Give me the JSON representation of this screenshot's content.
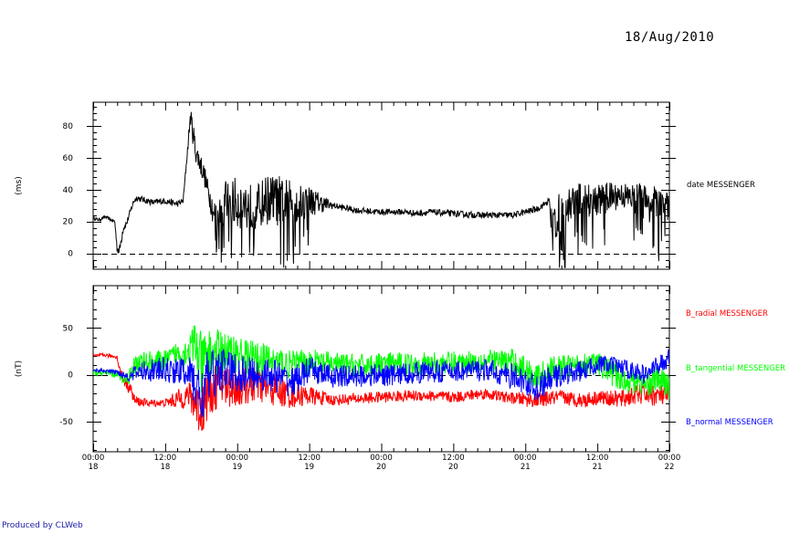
{
  "header": {
    "date": "18/Aug/2010"
  },
  "footer": {
    "credit": "Produced by CLWeb"
  },
  "chart_data": [
    {
      "type": "line",
      "ylabel": "(ms)",
      "ylim": [
        -10,
        95
      ],
      "yticks": [
        0,
        20,
        40,
        60,
        80
      ],
      "reference_line": 0,
      "x_range_hours": [
        0,
        96
      ],
      "series": [
        {
          "name": "date MESSENGER",
          "color": "#000000",
          "x": [
            0,
            1,
            2,
            3,
            3.6,
            4,
            4.4,
            5,
            5.6,
            6,
            6.8,
            7.3,
            8,
            10,
            12,
            14,
            15,
            16.2,
            16.5,
            17,
            17.3,
            18,
            18.6,
            19,
            19.5,
            20,
            20.7,
            21.5,
            22,
            24,
            25.5,
            27,
            29,
            31,
            32,
            34,
            36,
            40,
            44,
            48,
            52,
            54,
            56,
            60,
            64,
            70,
            74,
            76,
            76.5,
            77,
            78,
            80,
            84,
            86,
            88,
            90,
            92,
            94,
            95.5
          ],
          "y": [
            22,
            21,
            23,
            21,
            20,
            3,
            2,
            16,
            19,
            24,
            33,
            35,
            34,
            32,
            33,
            31,
            33,
            86,
            80,
            66,
            62,
            55,
            48,
            41,
            35,
            27,
            21,
            25,
            33,
            32,
            30,
            28,
            34,
            33,
            32,
            31,
            33,
            30,
            27,
            26,
            26,
            25,
            26,
            25,
            24,
            24,
            28,
            33,
            13,
            22,
            24,
            33,
            34,
            35,
            37,
            34,
            32,
            30,
            31
          ],
          "noise": [
            1,
            1,
            1,
            1,
            1,
            3,
            3,
            3,
            2,
            2,
            2,
            2,
            2,
            2,
            2,
            2,
            2,
            4,
            8,
            8,
            7,
            7,
            7,
            7,
            8,
            10,
            10,
            12,
            14,
            16,
            16,
            14,
            16,
            16,
            16,
            12,
            10,
            2,
            2,
            2,
            2,
            2,
            2,
            2,
            2,
            2,
            2,
            2,
            14,
            14,
            14,
            12,
            10,
            10,
            8,
            10,
            12,
            12,
            10
          ]
        }
      ]
    },
    {
      "type": "line",
      "ylabel": "(nT)",
      "ylim": [
        -82,
        95
      ],
      "yticks": [
        -50,
        0,
        50
      ],
      "reference_line": 0,
      "x_range_hours": [
        0,
        96
      ],
      "xticks": [
        {
          "h": 0,
          "time": "00:00",
          "day": "18"
        },
        {
          "h": 12,
          "time": "12:00",
          "day": "18"
        },
        {
          "h": 24,
          "time": "00:00",
          "day": "19"
        },
        {
          "h": 36,
          "time": "12:00",
          "day": "19"
        },
        {
          "h": 48,
          "time": "00:00",
          "day": "20"
        },
        {
          "h": 60,
          "time": "12:00",
          "day": "20"
        },
        {
          "h": 72,
          "time": "00:00",
          "day": "21"
        },
        {
          "h": 84,
          "time": "12:00",
          "day": "21"
        },
        {
          "h": 96,
          "time": "00:00",
          "day": "22"
        }
      ],
      "series": [
        {
          "name": "B_radial MESSENGER",
          "color": "#ff0000",
          "x": [
            0,
            2,
            4,
            4.3,
            5,
            6,
            7,
            9,
            12,
            14,
            16,
            17,
            18,
            19,
            21,
            24,
            27,
            30,
            33,
            36,
            40,
            45,
            50,
            55,
            60,
            65,
            70,
            72,
            74,
            76,
            78,
            80,
            82,
            84,
            86,
            88,
            90,
            92,
            94,
            96
          ],
          "y": [
            20,
            21,
            19,
            8,
            -5,
            -12,
            -28,
            -30,
            -30,
            -26,
            -22,
            -30,
            -40,
            -20,
            -10,
            -14,
            -10,
            -16,
            -22,
            -22,
            -27,
            -25,
            -23,
            -22,
            -24,
            -20,
            -25,
            -26,
            -27,
            -25,
            -24,
            -26,
            -27,
            -24,
            -25,
            -26,
            -22,
            -20,
            -22,
            -22
          ],
          "noise": [
            2,
            2,
            2,
            4,
            6,
            8,
            6,
            4,
            4,
            10,
            14,
            25,
            30,
            28,
            24,
            22,
            20,
            18,
            14,
            10,
            6,
            6,
            6,
            6,
            6,
            6,
            6,
            8,
            8,
            8,
            8,
            8,
            8,
            8,
            8,
            10,
            10,
            12,
            12,
            12
          ]
        },
        {
          "name": "B_tangential MESSENGER",
          "color": "#00ff00",
          "x": [
            0,
            2,
            4,
            5,
            6,
            7,
            9,
            12,
            14,
            16,
            17,
            18,
            19,
            21,
            24,
            27,
            30,
            33,
            36,
            40,
            45,
            50,
            55,
            60,
            65,
            70,
            72,
            74,
            76,
            78,
            80,
            82,
            84,
            86,
            88,
            90,
            92,
            94,
            96
          ],
          "y": [
            2,
            2,
            0,
            -5,
            -2,
            12,
            14,
            14,
            22,
            26,
            32,
            10,
            18,
            25,
            22,
            18,
            14,
            10,
            14,
            12,
            10,
            12,
            12,
            13,
            15,
            14,
            6,
            -3,
            5,
            8,
            10,
            12,
            12,
            4,
            -5,
            -6,
            -10,
            -4,
            -12
          ],
          "noise": [
            3,
            3,
            4,
            5,
            8,
            10,
            12,
            12,
            14,
            16,
            30,
            35,
            30,
            24,
            20,
            18,
            18,
            16,
            14,
            12,
            12,
            12,
            12,
            12,
            12,
            14,
            14,
            14,
            14,
            14,
            12,
            12,
            12,
            14,
            14,
            14,
            14,
            14,
            14
          ]
        },
        {
          "name": "B_normal MESSENGER",
          "color": "#0000ff",
          "x": [
            0,
            2,
            4,
            5,
            6,
            7,
            9,
            12,
            14,
            16,
            17,
            18,
            19,
            21,
            24,
            27,
            30,
            33,
            36,
            40,
            45,
            50,
            55,
            60,
            65,
            70,
            72,
            74,
            76,
            78,
            80,
            82,
            84,
            86,
            88,
            90,
            92,
            94,
            96
          ],
          "y": [
            5,
            4,
            3,
            0,
            -2,
            2,
            5,
            5,
            4,
            3,
            -10,
            -25,
            -5,
            6,
            2,
            0,
            0,
            -8,
            5,
            -2,
            -1,
            0,
            3,
            4,
            5,
            -2,
            -8,
            -15,
            -5,
            0,
            2,
            5,
            12,
            10,
            8,
            4,
            0,
            10,
            18
          ],
          "noise": [
            2,
            2,
            3,
            4,
            5,
            8,
            12,
            14,
            14,
            16,
            30,
            32,
            30,
            24,
            22,
            18,
            18,
            16,
            14,
            12,
            12,
            12,
            12,
            12,
            12,
            14,
            14,
            14,
            14,
            12,
            12,
            10,
            10,
            10,
            10,
            10,
            10,
            10,
            10
          ]
        }
      ]
    }
  ]
}
